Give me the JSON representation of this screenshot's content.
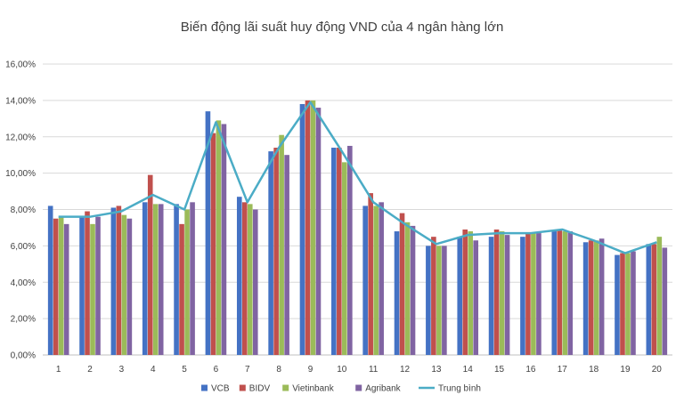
{
  "chart_data": {
    "type": "bar",
    "title": "Biến động lãi suất huy động VND của 4 ngân hàng lớn",
    "xlabel": "",
    "ylabel": "",
    "categories": [
      "1",
      "2",
      "3",
      "4",
      "5",
      "6",
      "7",
      "8",
      "9",
      "10",
      "11",
      "12",
      "13",
      "14",
      "15",
      "16",
      "17",
      "18",
      "19",
      "20"
    ],
    "ylim": [
      0,
      16
    ],
    "yticks": [
      0,
      2,
      4,
      6,
      8,
      10,
      12,
      14,
      16
    ],
    "ytick_labels": [
      "0,00%",
      "2,00%",
      "4,00%",
      "6,00%",
      "8,00%",
      "10,00%",
      "12,00%",
      "14,00%",
      "16,00%"
    ],
    "grid": true,
    "legend_position": "bottom",
    "series": [
      {
        "name": "VCB",
        "color": "#4472C4",
        "type": "bar",
        "values": [
          8.2,
          7.6,
          8.1,
          8.4,
          8.3,
          13.4,
          8.7,
          11.2,
          13.8,
          11.4,
          8.2,
          6.8,
          6.0,
          6.5,
          6.5,
          6.5,
          6.8,
          6.2,
          5.5,
          6.1
        ]
      },
      {
        "name": "BIDV",
        "color": "#C0504D",
        "type": "bar",
        "values": [
          7.5,
          7.9,
          8.2,
          9.9,
          7.2,
          12.2,
          8.4,
          11.4,
          14.0,
          11.4,
          8.9,
          7.8,
          6.5,
          6.9,
          6.9,
          6.7,
          6.9,
          6.3,
          5.6,
          6.1
        ]
      },
      {
        "name": "Vietinbank",
        "color": "#9BBB59",
        "type": "bar",
        "values": [
          7.6,
          7.2,
          7.7,
          8.3,
          8.0,
          12.9,
          8.3,
          12.1,
          14.0,
          10.6,
          8.2,
          7.3,
          6.0,
          6.8,
          6.8,
          6.7,
          6.8,
          6.3,
          5.6,
          6.5
        ]
      },
      {
        "name": "Agribank",
        "color": "#8064A2",
        "type": "bar",
        "values": [
          7.2,
          7.6,
          7.5,
          8.3,
          8.4,
          12.7,
          8.0,
          11.0,
          13.6,
          11.5,
          8.4,
          7.1,
          6.0,
          6.3,
          6.6,
          6.7,
          6.8,
          6.4,
          5.7,
          5.9
        ]
      },
      {
        "name": "Trung bình",
        "color": "#4BACC6",
        "type": "line",
        "values": [
          7.6,
          7.6,
          7.9,
          8.8,
          8.0,
          12.8,
          8.4,
          11.4,
          13.9,
          11.2,
          8.4,
          7.2,
          6.1,
          6.6,
          6.7,
          6.7,
          6.9,
          6.3,
          5.6,
          6.2
        ]
      }
    ]
  }
}
